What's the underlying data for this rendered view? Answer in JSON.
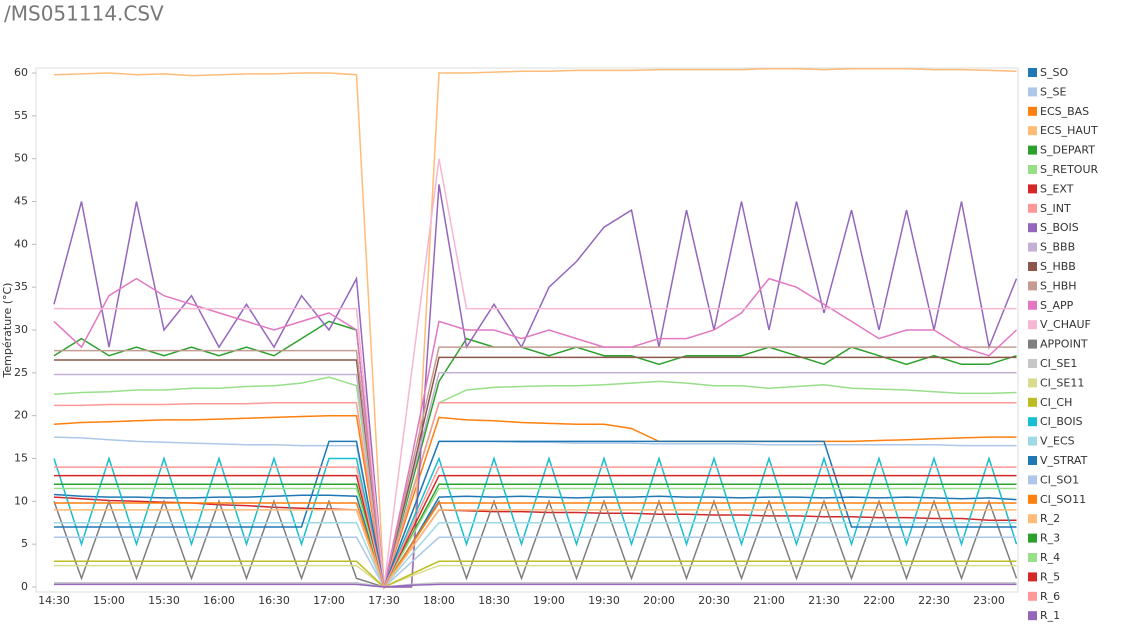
{
  "chart_data": {
    "type": "line",
    "title": "/MS051114.CSV",
    "y_label": "Température (°C)",
    "categories": [
      "14:30",
      null,
      "15:00",
      null,
      "15:30",
      null,
      "16:00",
      null,
      "16:30",
      null,
      "17:00",
      null,
      "17:30",
      null,
      "18:00",
      null,
      "18:30",
      null,
      "19:00",
      null,
      "19:30",
      null,
      "20:00",
      null,
      "20:30",
      null,
      "21:00",
      null,
      "21:30",
      null,
      "22:00",
      null,
      "22:30",
      null,
      "23:00",
      null
    ],
    "ylim": [
      0,
      60
    ],
    "yticks": [
      0,
      5,
      10,
      15,
      20,
      25,
      30,
      35,
      40,
      45,
      50,
      55,
      60
    ],
    "grid": false,
    "legend": "right",
    "series": [
      {
        "name": "S_SO",
        "color": "#1f77b4",
        "values": [
          10.8,
          10.6,
          10.5,
          10.5,
          10.4,
          10.4,
          10.5,
          10.5,
          10.6,
          10.7,
          10.7,
          10.6,
          0,
          5,
          10.5,
          10.6,
          10.5,
          10.6,
          10.5,
          10.4,
          10.5,
          10.5,
          10.6,
          10.5,
          10.5,
          10.4,
          10.5,
          10.5,
          10.4,
          10.5,
          10.4,
          10.5,
          10.4,
          10.3,
          10.4,
          10.2
        ]
      },
      {
        "name": "S_SE",
        "color": "#aec7e8",
        "values": [
          17.5,
          17.4,
          17.2,
          17,
          16.9,
          16.8,
          16.7,
          16.6,
          16.6,
          16.5,
          16.5,
          16.5,
          0,
          8.5,
          17,
          17,
          17,
          16.9,
          16.9,
          16.8,
          16.8,
          16.8,
          16.7,
          16.7,
          16.7,
          16.7,
          16.6,
          16.6,
          16.6,
          16.6,
          16.6,
          16.6,
          16.6,
          16.5,
          16.5,
          16.5
        ]
      },
      {
        "name": "ECS_BAS",
        "color": "#ff7f0e",
        "values": [
          19,
          19.2,
          19.3,
          19.4,
          19.5,
          19.5,
          19.6,
          19.7,
          19.8,
          19.9,
          20,
          20,
          0,
          10,
          19.8,
          19.5,
          19.4,
          19.2,
          19.1,
          19,
          19,
          18.5,
          17,
          17,
          17,
          17,
          17,
          17,
          17,
          17,
          17.1,
          17.2,
          17.3,
          17.4,
          17.5,
          17.5
        ]
      },
      {
        "name": "ECS_HAUT",
        "color": "#ffbb78",
        "values": [
          59.8,
          59.9,
          60,
          59.8,
          59.9,
          59.7,
          59.8,
          59.9,
          59.9,
          60,
          60,
          59.8,
          0,
          0,
          60,
          60,
          60.1,
          60.2,
          60.2,
          60.3,
          60.3,
          60.3,
          60.4,
          60.4,
          60.4,
          60.4,
          60.5,
          60.5,
          60.4,
          60.5,
          60.5,
          60.5,
          60.4,
          60.4,
          60.3,
          60.2
        ]
      },
      {
        "name": "S_DEPART",
        "color": "#2ca02c",
        "values": [
          27,
          29,
          27,
          28,
          27,
          28,
          27,
          28,
          27,
          29,
          31,
          30,
          0,
          12,
          24,
          29,
          28,
          28,
          27,
          28,
          27,
          27,
          26,
          27,
          27,
          27,
          28,
          27,
          26,
          28,
          27,
          26,
          27,
          26,
          26,
          27
        ]
      },
      {
        "name": "S_RETOUR",
        "color": "#98df8a",
        "values": [
          22.5,
          22.7,
          22.8,
          23,
          23,
          23.2,
          23.2,
          23.4,
          23.5,
          23.8,
          24.5,
          23.5,
          0,
          11,
          21.5,
          23,
          23.3,
          23.4,
          23.5,
          23.5,
          23.6,
          23.8,
          24,
          23.8,
          23.5,
          23.5,
          23.2,
          23.4,
          23.6,
          23.2,
          23.1,
          23,
          22.8,
          22.6,
          22.6,
          22.7
        ]
      },
      {
        "name": "S_EXT",
        "color": "#d62728",
        "values": [
          10.5,
          10.3,
          10.1,
          10,
          9.9,
          9.8,
          9.6,
          9.5,
          9.3,
          9.2,
          9.1,
          9,
          0,
          4.5,
          9,
          8.9,
          8.8,
          8.8,
          8.7,
          8.7,
          8.6,
          8.6,
          8.5,
          8.5,
          8.4,
          8.4,
          8.3,
          8.3,
          8.2,
          8.2,
          8.1,
          8.1,
          8,
          8,
          7.8,
          7.8
        ]
      },
      {
        "name": "S_INT",
        "color": "#ff9896",
        "values": [
          21.2,
          21.2,
          21.3,
          21.3,
          21.3,
          21.4,
          21.4,
          21.4,
          21.5,
          21.5,
          21.5,
          21.5,
          0,
          10.7,
          21.5,
          21.5,
          21.5,
          21.5,
          21.5,
          21.5,
          21.5,
          21.5,
          21.5,
          21.5,
          21.5,
          21.5,
          21.5,
          21.5,
          21.5,
          21.5,
          21.5,
          21.5,
          21.5,
          21.5,
          21.5,
          21.5
        ]
      },
      {
        "name": "S_BOIS",
        "color": "#9467bd",
        "values": [
          33,
          45,
          28,
          45,
          30,
          34,
          28,
          33,
          28,
          34,
          30,
          36,
          0,
          0,
          47,
          28,
          33,
          28,
          35,
          38,
          42,
          44,
          28,
          44,
          30,
          45,
          30,
          45,
          32,
          44,
          30,
          44,
          30,
          45,
          28,
          36
        ]
      },
      {
        "name": "S_BBB",
        "color": "#c5b0d5",
        "values": [
          24.8,
          24.8,
          24.8,
          24.8,
          24.8,
          24.8,
          24.8,
          24.8,
          24.8,
          24.8,
          24.8,
          24.8,
          0,
          12.5,
          25,
          25,
          25,
          25,
          25,
          25,
          25,
          25,
          25,
          25,
          25,
          25,
          25,
          25,
          25,
          25,
          25,
          25,
          25,
          25,
          25,
          25
        ]
      },
      {
        "name": "S_HBB",
        "color": "#8c564b",
        "values": [
          26.5,
          26.5,
          26.5,
          26.5,
          26.5,
          26.5,
          26.5,
          26.5,
          26.5,
          26.5,
          26.5,
          26.5,
          0,
          13,
          26.8,
          26.8,
          26.8,
          26.8,
          26.8,
          26.8,
          26.8,
          26.8,
          26.8,
          26.8,
          26.8,
          26.8,
          26.8,
          26.8,
          26.8,
          26.8,
          26.8,
          26.8,
          26.8,
          26.8,
          26.8,
          26.8
        ]
      },
      {
        "name": "S_HBH",
        "color": "#c49c94",
        "values": [
          27.6,
          27.6,
          27.6,
          27.6,
          27.6,
          27.6,
          27.6,
          27.6,
          27.6,
          27.6,
          27.6,
          27.6,
          0,
          14,
          28,
          28,
          28,
          28,
          28,
          28,
          28,
          28,
          28,
          28,
          28,
          28,
          28,
          28,
          28,
          28,
          28,
          28,
          28,
          28,
          28,
          28
        ]
      },
      {
        "name": "S_APP",
        "color": "#e377c2",
        "values": [
          31,
          28,
          34,
          36,
          34,
          33,
          32,
          31,
          30,
          31,
          32,
          30,
          0,
          15,
          31,
          30,
          30,
          29,
          30,
          29,
          28,
          28,
          29,
          29,
          30,
          32,
          36,
          35,
          33,
          31,
          29,
          30,
          30,
          28,
          27,
          30
        ]
      },
      {
        "name": "V_CHAUF",
        "color": "#f7b6d2",
        "values": [
          32.5,
          32.5,
          32.5,
          32.5,
          32.5,
          32.5,
          32.5,
          32.5,
          32.5,
          32.5,
          32.5,
          32.5,
          0,
          25,
          50,
          32.5,
          32.5,
          32.5,
          32.5,
          32.5,
          32.5,
          32.5,
          32.5,
          32.5,
          32.5,
          32.5,
          32.5,
          32.5,
          32.5,
          32.5,
          32.5,
          32.5,
          32.5,
          32.5,
          32.5,
          32.5
        ]
      },
      {
        "name": "APPOINT",
        "color": "#7f7f7f",
        "values": [
          10,
          1,
          10,
          1,
          10,
          1,
          10,
          1,
          10,
          1,
          10,
          1,
          0,
          5,
          10,
          1,
          10,
          1,
          10,
          1,
          10,
          1,
          10,
          1,
          10,
          1,
          10,
          1,
          10,
          1,
          10,
          1,
          10,
          1,
          10,
          1
        ]
      },
      {
        "name": "CI_SE1",
        "color": "#c7c7c7",
        "values": [
          0.5,
          0.5,
          0.5,
          0.5,
          0.5,
          0.5,
          0.5,
          0.5,
          0.5,
          0.5,
          0.5,
          0.5,
          0,
          0.3,
          0.5,
          0.5,
          0.5,
          0.5,
          0.5,
          0.5,
          0.5,
          0.5,
          0.5,
          0.5,
          0.5,
          0.5,
          0.5,
          0.5,
          0.5,
          0.5,
          0.5,
          0.5,
          0.5,
          0.5,
          0.5,
          0.5
        ]
      },
      {
        "name": "CI_SE11",
        "color": "#dbdb8d",
        "values": [
          2.5,
          2.5,
          2.5,
          2.5,
          2.5,
          2.5,
          2.5,
          2.5,
          2.5,
          2.5,
          2.5,
          2.5,
          0,
          1.3,
          2.5,
          2.5,
          2.5,
          2.5,
          2.5,
          2.5,
          2.5,
          2.5,
          2.5,
          2.5,
          2.5,
          2.5,
          2.5,
          2.5,
          2.5,
          2.5,
          2.5,
          2.5,
          2.5,
          2.5,
          2.5,
          2.5
        ]
      },
      {
        "name": "CI_CH",
        "color": "#bcbd22",
        "values": [
          3,
          3,
          3,
          3,
          3,
          3,
          3,
          3,
          3,
          3,
          3,
          3,
          0,
          1.5,
          3,
          3,
          3,
          3,
          3,
          3,
          3,
          3,
          3,
          3,
          3,
          3,
          3,
          3,
          3,
          3,
          3,
          3,
          3,
          3,
          3,
          3
        ]
      },
      {
        "name": "CI_BOIS",
        "color": "#17becf",
        "values": [
          15,
          5,
          15,
          5,
          15,
          5,
          15,
          5,
          15,
          5,
          15,
          15,
          0,
          7.5,
          15,
          5,
          15,
          5,
          15,
          5,
          15,
          5,
          15,
          5,
          15,
          5,
          15,
          5,
          15,
          5,
          15,
          5,
          15,
          5,
          15,
          5
        ]
      },
      {
        "name": "V_ECS",
        "color": "#9edae5",
        "values": [
          7.5,
          7.5,
          7.5,
          7.5,
          7.5,
          7.5,
          7.5,
          7.5,
          7.5,
          7.5,
          7.5,
          7.5,
          0,
          3.8,
          7.5,
          7.5,
          7.5,
          7.5,
          7.5,
          7.5,
          7.5,
          7.5,
          7.5,
          7.5,
          7.5,
          7.5,
          7.5,
          7.5,
          7.5,
          7.5,
          7.5,
          7.5,
          7.5,
          7.5,
          7.5,
          7.5
        ]
      },
      {
        "name": "V_STRAT",
        "color": "#1f77b4",
        "values": [
          7,
          7,
          7,
          7,
          7,
          7,
          7,
          7,
          7,
          7,
          17,
          17,
          0,
          8.5,
          17,
          17,
          17,
          17,
          17,
          17,
          17,
          17,
          17,
          17,
          17,
          17,
          17,
          17,
          17,
          7,
          7,
          7,
          7,
          7,
          7,
          7
        ]
      },
      {
        "name": "CI_SO1",
        "color": "#aec7e8",
        "values": [
          5.8,
          5.8,
          5.8,
          5.8,
          5.8,
          5.8,
          5.8,
          5.8,
          5.8,
          5.8,
          5.8,
          5.8,
          0,
          2.9,
          5.8,
          5.8,
          5.8,
          5.8,
          5.8,
          5.8,
          5.8,
          5.8,
          5.8,
          5.8,
          5.8,
          5.8,
          5.8,
          5.8,
          5.8,
          5.8,
          5.8,
          5.8,
          5.8,
          5.8,
          5.8,
          5.8
        ]
      },
      {
        "name": "CI_SO11",
        "color": "#ff7f0e",
        "values": [
          9.8,
          9.8,
          9.8,
          9.8,
          9.8,
          9.8,
          9.8,
          9.8,
          9.8,
          9.8,
          9.8,
          9.8,
          0,
          4.9,
          9.8,
          9.8,
          9.8,
          9.8,
          9.8,
          9.8,
          9.8,
          9.8,
          9.8,
          9.8,
          9.8,
          9.8,
          9.8,
          9.8,
          9.8,
          9.8,
          9.8,
          9.8,
          9.8,
          9.8,
          9.8,
          9.8
        ]
      },
      {
        "name": "R_2",
        "color": "#ffbb78",
        "values": [
          9,
          9,
          9,
          9,
          9,
          9,
          9,
          9,
          9,
          9,
          9,
          9,
          0,
          4.5,
          9,
          9,
          9,
          9,
          9,
          9,
          9,
          9,
          9,
          9,
          9,
          9,
          9,
          9,
          9,
          9,
          9,
          9,
          9,
          9,
          9,
          9
        ]
      },
      {
        "name": "R_3",
        "color": "#2ca02c",
        "values": [
          12,
          12,
          12,
          12,
          12,
          12,
          12,
          12,
          12,
          12,
          12,
          12,
          0,
          6,
          12,
          12,
          12,
          12,
          12,
          12,
          12,
          12,
          12,
          12,
          12,
          12,
          12,
          12,
          12,
          12,
          12,
          12,
          12,
          12,
          12,
          12
        ]
      },
      {
        "name": "R_4",
        "color": "#98df8a",
        "values": [
          11.5,
          11.5,
          11.5,
          11.5,
          11.5,
          11.5,
          11.5,
          11.5,
          11.5,
          11.5,
          11.5,
          11.5,
          0,
          5.8,
          11.5,
          11.5,
          11.5,
          11.5,
          11.5,
          11.5,
          11.5,
          11.5,
          11.5,
          11.5,
          11.5,
          11.5,
          11.5,
          11.5,
          11.5,
          11.5,
          11.5,
          11.5,
          11.5,
          11.5,
          11.5,
          11.5
        ]
      },
      {
        "name": "R_5",
        "color": "#d62728",
        "values": [
          13,
          13,
          13,
          13,
          13,
          13,
          13,
          13,
          13,
          13,
          13,
          13,
          0,
          6.5,
          13,
          13,
          13,
          13,
          13,
          13,
          13,
          13,
          13,
          13,
          13,
          13,
          13,
          13,
          13,
          13,
          13,
          13,
          13,
          13,
          13,
          13
        ]
      },
      {
        "name": "R_6",
        "color": "#ff9896",
        "values": [
          14,
          14,
          14,
          14,
          14,
          14,
          14,
          14,
          14,
          14,
          14,
          14,
          0,
          7,
          14,
          14,
          14,
          14,
          14,
          14,
          14,
          14,
          14,
          14,
          14,
          14,
          14,
          14,
          14,
          14,
          14,
          14,
          14,
          14,
          14,
          14
        ]
      },
      {
        "name": "R_1",
        "color": "#9467bd",
        "values": [
          0.3,
          0.3,
          0.3,
          0.3,
          0.3,
          0.3,
          0.3,
          0.3,
          0.3,
          0.3,
          0.3,
          0.3,
          0,
          0.2,
          0.3,
          0.3,
          0.3,
          0.3,
          0.3,
          0.3,
          0.3,
          0.3,
          0.3,
          0.3,
          0.3,
          0.3,
          0.3,
          0.3,
          0.3,
          0.3,
          0.3,
          0.3,
          0.3,
          0.3,
          0.3,
          0.3
        ]
      }
    ]
  }
}
